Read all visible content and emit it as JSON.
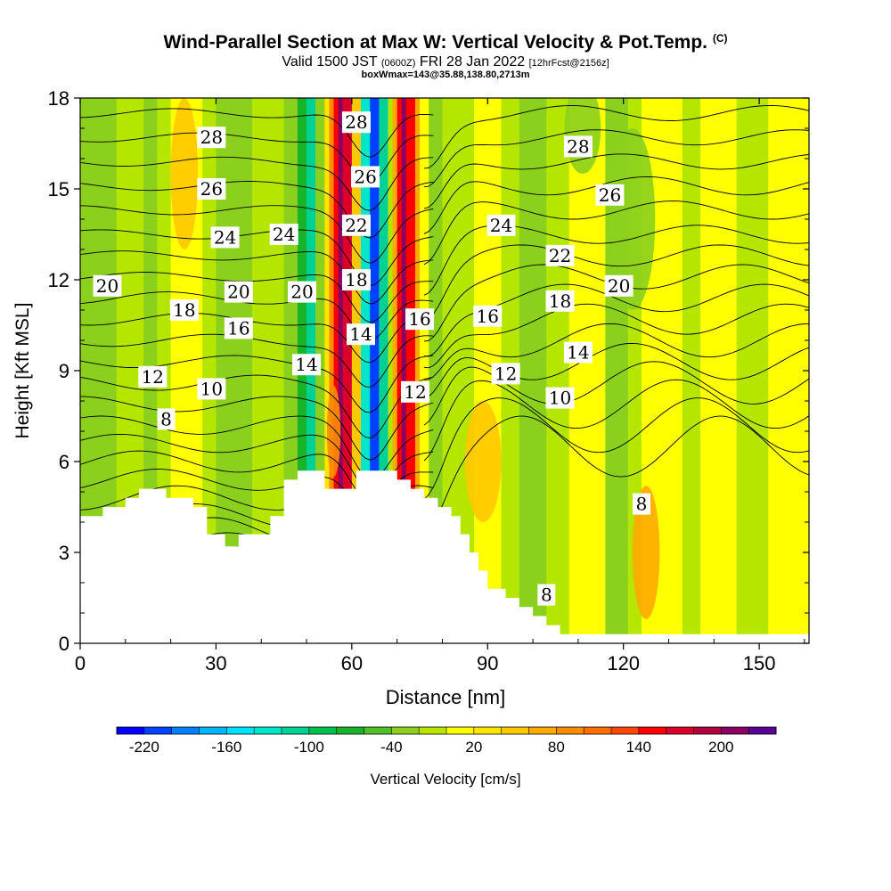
{
  "header": {
    "title": "Wind-Parallel Section at Max W: Vertical Velocity & Pot.Temp.",
    "copyright": "(C)",
    "valid_prefix": "Valid 1500 JST",
    "utc": "(0600Z)",
    "date": "FRI 28 Jan 2022",
    "forecast": "[12hrFcst@2156z]",
    "box_info": "boxWmax=143@35.88,138.80,2713m"
  },
  "chart_data": {
    "type": "heatmap",
    "title": "Wind-Parallel Section at Max W: Vertical Velocity & Pot.Temp.",
    "xlabel": "Distance [nm]",
    "ylabel": "Height [Kft MSL]",
    "xlim": [
      0,
      161
    ],
    "ylim": [
      0,
      18
    ],
    "x_ticks": [
      "0",
      "30",
      "60",
      "90",
      "120",
      "150"
    ],
    "y_ticks": [
      "0",
      "3",
      "6",
      "9",
      "12",
      "15",
      "18"
    ],
    "colorbar": {
      "label": "Vertical Velocity [cm/s]",
      "tick_labels": [
        "-220",
        "-160",
        "-100",
        "-40",
        "20",
        "80",
        "140",
        "200"
      ],
      "min": -240,
      "max": 240,
      "step": 20,
      "colors": [
        "#0000ff",
        "#0040ff",
        "#0080ff",
        "#00b4ff",
        "#00e0ff",
        "#00e6c8",
        "#00d296",
        "#00c050",
        "#18b428",
        "#50c028",
        "#8cd01e",
        "#b4e600",
        "#ffff00",
        "#ffe600",
        "#ffc800",
        "#ffaa00",
        "#ff8c00",
        "#ff6e00",
        "#ff4600",
        "#ff0000",
        "#dc0028",
        "#b4003c",
        "#8c0064",
        "#5a0096"
      ]
    },
    "terrain_top_kft": [
      [
        0,
        4.2
      ],
      [
        5,
        4.2
      ],
      [
        5,
        4.5
      ],
      [
        10,
        4.5
      ],
      [
        10,
        4.8
      ],
      [
        13,
        4.8
      ],
      [
        13,
        5.1
      ],
      [
        19,
        5.1
      ],
      [
        19,
        4.8
      ],
      [
        25,
        4.8
      ],
      [
        25,
        4.5
      ],
      [
        28,
        4.5
      ],
      [
        28,
        3.6
      ],
      [
        32,
        3.6
      ],
      [
        32,
        3.2
      ],
      [
        35,
        3.2
      ],
      [
        35,
        3.6
      ],
      [
        42,
        3.6
      ],
      [
        42,
        4.2
      ],
      [
        45,
        4.2
      ],
      [
        45,
        5.4
      ],
      [
        48,
        5.4
      ],
      [
        48,
        5.7
      ],
      [
        54,
        5.7
      ],
      [
        54,
        5.1
      ],
      [
        61,
        5.1
      ],
      [
        61,
        5.7
      ],
      [
        70,
        5.7
      ],
      [
        70,
        5.4
      ],
      [
        73,
        5.4
      ],
      [
        73,
        5.1
      ],
      [
        76,
        5.1
      ],
      [
        76,
        4.8
      ],
      [
        79,
        4.8
      ],
      [
        79,
        4.5
      ],
      [
        82,
        4.5
      ],
      [
        82,
        4.2
      ],
      [
        84,
        4.2
      ],
      [
        84,
        3.6
      ],
      [
        86,
        3.6
      ],
      [
        86,
        3.0
      ],
      [
        88,
        3.0
      ],
      [
        88,
        2.4
      ],
      [
        90,
        2.4
      ],
      [
        90,
        1.8
      ],
      [
        94,
        1.8
      ],
      [
        94,
        1.5
      ],
      [
        97,
        1.5
      ],
      [
        97,
        1.2
      ],
      [
        100,
        1.2
      ],
      [
        100,
        0.9
      ],
      [
        103,
        0.9
      ],
      [
        103,
        0.6
      ],
      [
        106,
        0.6
      ],
      [
        106,
        0.3
      ],
      [
        161,
        0.3
      ]
    ],
    "theta_contour_labels": [
      {
        "text": "28",
        "x": 29,
        "y": 16.7
      },
      {
        "text": "26",
        "x": 29,
        "y": 15.0
      },
      {
        "text": "24",
        "x": 32,
        "y": 13.4
      },
      {
        "text": "24",
        "x": 45,
        "y": 13.5
      },
      {
        "text": "20",
        "x": 6,
        "y": 11.8
      },
      {
        "text": "20",
        "x": 35,
        "y": 11.6
      },
      {
        "text": "20",
        "x": 49,
        "y": 11.6
      },
      {
        "text": "18",
        "x": 23,
        "y": 11.0
      },
      {
        "text": "16",
        "x": 35,
        "y": 10.4
      },
      {
        "text": "14",
        "x": 50,
        "y": 9.2
      },
      {
        "text": "12",
        "x": 16,
        "y": 8.8
      },
      {
        "text": "10",
        "x": 29,
        "y": 8.4
      },
      {
        "text": "8",
        "x": 19,
        "y": 7.4
      },
      {
        "text": "28",
        "x": 61,
        "y": 17.2
      },
      {
        "text": "26",
        "x": 63,
        "y": 15.4
      },
      {
        "text": "22",
        "x": 61,
        "y": 13.8
      },
      {
        "text": "18",
        "x": 61,
        "y": 12.0
      },
      {
        "text": "14",
        "x": 62,
        "y": 10.2
      },
      {
        "text": "16",
        "x": 75,
        "y": 10.7
      },
      {
        "text": "12",
        "x": 74,
        "y": 8.3
      },
      {
        "text": "24",
        "x": 93,
        "y": 13.8
      },
      {
        "text": "16",
        "x": 90,
        "y": 10.8
      },
      {
        "text": "12",
        "x": 94,
        "y": 8.9
      },
      {
        "text": "28",
        "x": 110,
        "y": 16.4
      },
      {
        "text": "26",
        "x": 117,
        "y": 14.8
      },
      {
        "text": "22",
        "x": 106,
        "y": 12.8
      },
      {
        "text": "18",
        "x": 106,
        "y": 11.3
      },
      {
        "text": "14",
        "x": 110,
        "y": 9.6
      },
      {
        "text": "10",
        "x": 106,
        "y": 8.1
      },
      {
        "text": "20",
        "x": 119,
        "y": 11.8
      },
      {
        "text": "8",
        "x": 124,
        "y": 4.6
      },
      {
        "text": "8",
        "x": 103,
        "y": 1.6
      }
    ],
    "theta_contours": [
      {
        "kind": "left",
        "y0": 0.9,
        "amp": 0.55,
        "dip": 1.0
      },
      {
        "kind": "left",
        "y0": 1.6,
        "amp": 0.55,
        "dip": 1.0
      },
      {
        "kind": "left",
        "y0": 2.2,
        "amp": 0.5,
        "dip": 1.0
      },
      {
        "kind": "left",
        "y0": 2.7,
        "amp": 0.5,
        "dip": 1.0
      },
      {
        "kind": "left",
        "y0": 3.2,
        "amp": 0.45,
        "dip": 1.0
      },
      {
        "kind": "left",
        "y0": 3.7,
        "amp": 0.45,
        "dip": 1.0
      },
      {
        "kind": "left",
        "y0": 4.2,
        "amp": 0.4,
        "dip": 1.0
      },
      {
        "kind": "left",
        "y0": 4.8,
        "amp": 0.4,
        "dip": 1.0
      },
      {
        "kind": "left",
        "y0": 5.4,
        "amp": 0.35,
        "dip": 1.0
      },
      {
        "kind": "left",
        "y0": 6.0,
        "amp": 0.35,
        "dip": 1.0
      },
      {
        "kind": "left",
        "y0": 6.6,
        "amp": 0.3,
        "dip": 1.0
      },
      {
        "kind": "left",
        "y0": 7.2,
        "amp": 0.3,
        "dip": 1.0
      },
      {
        "kind": "left",
        "y0": 7.9,
        "amp": 0.25,
        "dip": 1.0
      },
      {
        "kind": "left",
        "y0": 8.6,
        "amp": 0.25,
        "dip": 1.0
      },
      {
        "kind": "left",
        "y0": 9.3,
        "amp": 0.2,
        "dip": 1.0
      },
      {
        "kind": "left",
        "y0": 10.0,
        "amp": 0.2,
        "dip": 1.0
      },
      {
        "kind": "left",
        "y0": 10.7,
        "amp": 0.2,
        "dip": 1.0
      },
      {
        "kind": "left",
        "y0": 11.4,
        "amp": 0.2,
        "dip": 1.0
      },
      {
        "kind": "left",
        "y0": 12.1,
        "amp": 0.15,
        "dip": 1.0
      },
      {
        "kind": "left",
        "y0": 12.8,
        "amp": 0.15,
        "dip": 1.0
      },
      {
        "kind": "left",
        "y0": 13.5,
        "amp": 0.15,
        "dip": 1.0
      },
      {
        "kind": "left",
        "y0": 14.3,
        "amp": 0.15,
        "dip": 1.0
      },
      {
        "kind": "left",
        "y0": 15.1,
        "amp": 0.15,
        "dip": 1.0
      },
      {
        "kind": "left",
        "y0": 15.9,
        "amp": 0.15,
        "dip": 1.0
      },
      {
        "kind": "left",
        "y0": 16.7,
        "amp": 0.15,
        "dip": 1.0
      },
      {
        "kind": "left",
        "y0": 17.5,
        "amp": 0.15,
        "dip": 1.0
      },
      {
        "kind": "right",
        "y0": 6.5,
        "amp": 1.0,
        "dip": 2.0
      },
      {
        "kind": "right",
        "y0": 7.2,
        "amp": 0.9,
        "dip": 2.0
      },
      {
        "kind": "right",
        "y0": 7.9,
        "amp": 0.8,
        "dip": 2.0
      },
      {
        "kind": "right",
        "y0": 8.6,
        "amp": 0.7,
        "dip": 2.0
      },
      {
        "kind": "right",
        "y0": 9.3,
        "amp": 0.6,
        "dip": 2.0
      },
      {
        "kind": "right",
        "y0": 10.0,
        "amp": 0.55,
        "dip": 2.0
      },
      {
        "kind": "right",
        "y0": 10.7,
        "amp": 0.5,
        "dip": 2.0
      },
      {
        "kind": "right",
        "y0": 11.4,
        "amp": 0.45,
        "dip": 2.0
      },
      {
        "kind": "right",
        "y0": 12.1,
        "amp": 0.4,
        "dip": 2.0
      },
      {
        "kind": "right",
        "y0": 12.8,
        "amp": 0.35,
        "dip": 2.0
      },
      {
        "kind": "right",
        "y0": 13.5,
        "amp": 0.3,
        "dip": 2.0
      },
      {
        "kind": "right",
        "y0": 14.3,
        "amp": 0.3,
        "dip": 2.0
      },
      {
        "kind": "right",
        "y0": 15.1,
        "amp": 0.3,
        "dip": 2.0
      },
      {
        "kind": "right",
        "y0": 15.9,
        "amp": 0.25,
        "dip": 2.0
      },
      {
        "kind": "right",
        "y0": 16.7,
        "amp": 0.25,
        "dip": 2.0
      },
      {
        "kind": "right",
        "y0": 17.5,
        "amp": 0.25,
        "dip": 2.0
      }
    ],
    "velocity_bands": [
      {
        "x0": 0,
        "x1": 8,
        "w": -30
      },
      {
        "x0": 8,
        "x1": 14,
        "w": -10
      },
      {
        "x0": 14,
        "x1": 17,
        "w": -30
      },
      {
        "x0": 17,
        "x1": 20,
        "w": -10
      },
      {
        "x0": 20,
        "x1": 27,
        "w": 15
      },
      {
        "x0": 27,
        "x1": 30,
        "w": -10
      },
      {
        "x0": 30,
        "x1": 38,
        "w": -30
      },
      {
        "x0": 38,
        "x1": 45,
        "w": -10
      },
      {
        "x0": 45,
        "x1": 48,
        "w": -30
      },
      {
        "x0": 48,
        "x1": 50,
        "w": -70
      },
      {
        "x0": 50,
        "x1": 52,
        "w": -110
      },
      {
        "x0": 52,
        "x1": 54,
        "w": -40
      },
      {
        "x0": 54,
        "x1": 55,
        "w": 30
      },
      {
        "x0": 55,
        "x1": 56,
        "w": 90
      },
      {
        "x0": 56,
        "x1": 57,
        "w": 150
      },
      {
        "x0": 57,
        "x1": 58,
        "w": 200
      },
      {
        "x0": 58,
        "x1": 60,
        "w": 160
      },
      {
        "x0": 60,
        "x1": 62,
        "w": 40
      },
      {
        "x0": 62,
        "x1": 64,
        "w": -140
      },
      {
        "x0": 64,
        "x1": 66,
        "w": -210
      },
      {
        "x0": 66,
        "x1": 68,
        "w": -120
      },
      {
        "x0": 68,
        "x1": 69,
        "w": -20
      },
      {
        "x0": 69,
        "x1": 70,
        "w": 70
      },
      {
        "x0": 70,
        "x1": 71,
        "w": 150
      },
      {
        "x0": 71,
        "x1": 72,
        "w": 200
      },
      {
        "x0": 72,
        "x1": 74,
        "w": 150
      },
      {
        "x0": 74,
        "x1": 75,
        "w": 70
      },
      {
        "x0": 75,
        "x1": 77,
        "w": 10
      },
      {
        "x0": 77,
        "x1": 80,
        "w": -30
      },
      {
        "x0": 80,
        "x1": 87,
        "w": -10
      },
      {
        "x0": 87,
        "x1": 93,
        "w": 15
      },
      {
        "x0": 93,
        "x1": 97,
        "w": -10
      },
      {
        "x0": 97,
        "x1": 103,
        "w": -30
      },
      {
        "x0": 103,
        "x1": 108,
        "w": -10
      },
      {
        "x0": 108,
        "x1": 116,
        "w": 15
      },
      {
        "x0": 116,
        "x1": 121,
        "w": -30
      },
      {
        "x0": 121,
        "x1": 124,
        "w": -10
      },
      {
        "x0": 124,
        "x1": 133,
        "w": 15
      },
      {
        "x0": 133,
        "x1": 137,
        "w": -10
      },
      {
        "x0": 137,
        "x1": 145,
        "w": 15
      },
      {
        "x0": 145,
        "x1": 152,
        "w": -10
      },
      {
        "x0": 152,
        "x1": 161,
        "w": 15
      }
    ],
    "velocity_blobs": [
      {
        "x": 23,
        "y": 15.5,
        "rx": 3,
        "ry": 2.5,
        "w": 40
      },
      {
        "x": 89,
        "y": 6.0,
        "rx": 4,
        "ry": 2.0,
        "w": 40
      },
      {
        "x": 125,
        "y": 3.0,
        "rx": 3,
        "ry": 2.2,
        "w": 60
      },
      {
        "x": 111,
        "y": 17.0,
        "rx": 4,
        "ry": 1.5,
        "w": -40
      },
      {
        "x": 122,
        "y": 14.0,
        "rx": 5,
        "ry": 3.0,
        "w": -40
      },
      {
        "x": 56,
        "y": 7.0,
        "rx": 1.5,
        "ry": 1.5,
        "w": 80
      }
    ]
  }
}
